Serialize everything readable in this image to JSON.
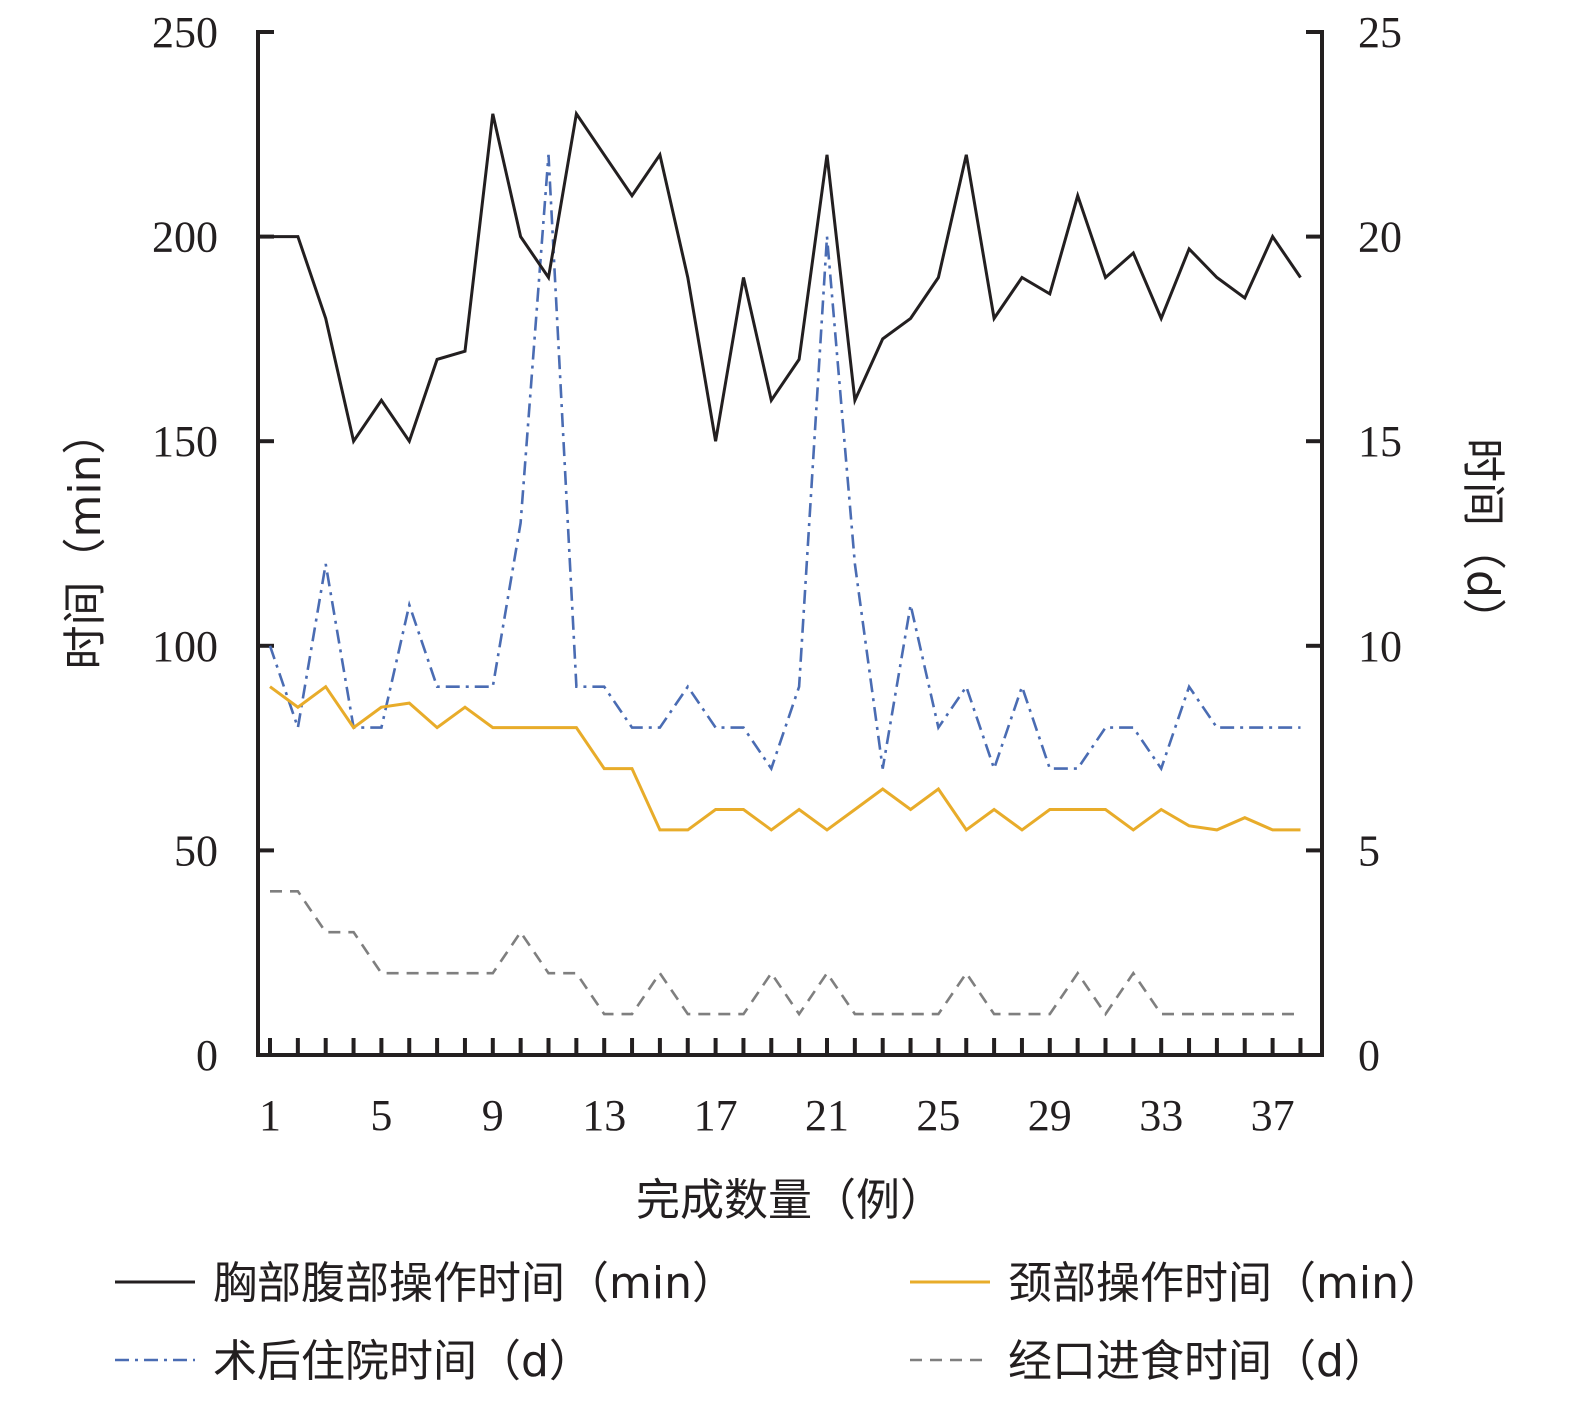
{
  "chart_data": {
    "type": "line",
    "xlabel": "完成数量（例）",
    "ylabel_left": "时间（min）",
    "ylabel_right": "时间（d）",
    "x": [
      1,
      2,
      3,
      4,
      5,
      6,
      7,
      8,
      9,
      10,
      11,
      12,
      13,
      14,
      15,
      16,
      17,
      18,
      19,
      20,
      21,
      22,
      23,
      24,
      25,
      26,
      27,
      28,
      29,
      30,
      31,
      32,
      33,
      34,
      35,
      36,
      37,
      38
    ],
    "x_tick_labels": [
      "1",
      "5",
      "9",
      "13",
      "17",
      "21",
      "25",
      "29",
      "33",
      "37"
    ],
    "x_tick_values": [
      1,
      5,
      9,
      13,
      17,
      21,
      25,
      29,
      33,
      37
    ],
    "ylim_left": [
      0,
      250
    ],
    "ylim_right": [
      0,
      25
    ],
    "yticks_left": [
      "0",
      "50",
      "100",
      "150",
      "200",
      "250"
    ],
    "yticks_right": [
      "0",
      "5",
      "10",
      "15",
      "20",
      "25"
    ],
    "series": [
      {
        "name": "胸部腹部操作时间（min）",
        "axis": "left",
        "color": "#231f20",
        "dash": "solid",
        "values": [
          200,
          200,
          180,
          150,
          160,
          150,
          170,
          172,
          230,
          200,
          190,
          230,
          220,
          210,
          220,
          190,
          150,
          190,
          160,
          170,
          220,
          160,
          175,
          180,
          190,
          220,
          180,
          190,
          186,
          210,
          190,
          196,
          180,
          197,
          190,
          185,
          200,
          190
        ]
      },
      {
        "name": "颈部操作时间（min）",
        "axis": "left",
        "color": "#e8ac2a",
        "dash": "solid",
        "values": [
          90,
          85,
          90,
          80,
          85,
          86,
          80,
          85,
          80,
          80,
          80,
          80,
          70,
          70,
          55,
          55,
          60,
          60,
          55,
          60,
          55,
          60,
          65,
          60,
          65,
          55,
          60,
          55,
          60,
          60,
          60,
          55,
          60,
          56,
          55,
          58,
          55,
          55
        ]
      },
      {
        "name": "术后住院时间（d）",
        "axis": "right",
        "color": "#4a6cb3",
        "dash": "dashdot",
        "values": [
          10,
          8,
          12,
          8,
          8,
          11,
          9,
          9,
          9,
          13,
          22,
          9,
          9,
          8,
          8,
          9,
          8,
          8,
          7,
          9,
          20,
          12,
          7,
          11,
          8,
          9,
          7,
          9,
          7,
          7,
          8,
          8,
          7,
          9,
          8,
          8,
          8,
          8
        ]
      },
      {
        "name": "经口进食时间（d）",
        "axis": "right",
        "color": "#7f7f7f",
        "dash": "dashed",
        "values": [
          4,
          4,
          3,
          3,
          2,
          2,
          2,
          2,
          2,
          3,
          2,
          2,
          1,
          1,
          2,
          1,
          1,
          1,
          2,
          1,
          2,
          1,
          1,
          1,
          1,
          2,
          1,
          1,
          1,
          2,
          1,
          2,
          1,
          1,
          1,
          1,
          1,
          1
        ]
      }
    ],
    "legend_placement": "bottom",
    "grid": false
  }
}
